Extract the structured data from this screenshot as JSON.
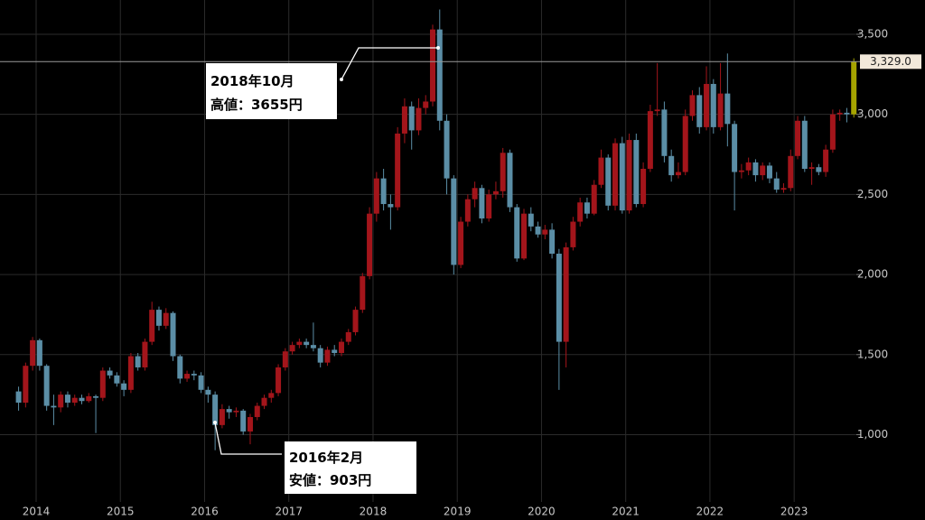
{
  "chart_data": {
    "type": "candlestick",
    "categories": [
      null,
      null,
      null,
      "2014",
      null,
      null,
      null,
      null,
      null,
      null,
      null,
      null,
      null,
      null,
      null,
      "2015",
      null,
      null,
      null,
      null,
      null,
      null,
      null,
      null,
      null,
      null,
      null,
      "2016",
      null,
      null,
      null,
      null,
      null,
      null,
      null,
      null,
      null,
      null,
      null,
      "2017",
      null,
      null,
      null,
      null,
      null,
      null,
      null,
      null,
      null,
      null,
      null,
      "2018",
      null,
      null,
      null,
      null,
      null,
      null,
      null,
      null,
      null,
      null,
      null,
      "2019",
      null,
      null,
      null,
      null,
      null,
      null,
      null,
      null,
      null,
      null,
      null,
      "2020",
      null,
      null,
      null,
      null,
      null,
      null,
      null,
      null,
      null,
      null,
      null,
      "2021",
      null,
      null,
      null,
      null,
      null,
      null,
      null,
      null,
      null,
      null,
      null,
      "2022",
      null,
      null,
      null,
      null,
      null,
      null,
      null,
      null,
      null,
      null,
      null,
      "2023",
      null,
      null,
      null,
      null,
      null,
      null,
      null,
      null
    ],
    "open": [
      1270,
      1200,
      1430,
      1590,
      1430,
      1180,
      1170,
      1250,
      1200,
      1230,
      1210,
      1240,
      1230,
      1400,
      1370,
      1320,
      1280,
      1490,
      1420,
      1580,
      1780,
      1680,
      1760,
      1490,
      1350,
      1380,
      1370,
      1280,
      1250,
      1060,
      1160,
      1140,
      1150,
      1020,
      1110,
      1180,
      1230,
      1260,
      1420,
      1520,
      1560,
      1580,
      1560,
      1540,
      1450,
      1530,
      1510,
      1580,
      1640,
      1780,
      1990,
      2380,
      2600,
      2440,
      2420,
      2880,
      3050,
      2900,
      3040,
      3080,
      3530,
      2960,
      2600,
      2060,
      2330,
      2470,
      2540,
      2350,
      2500,
      2520,
      2760,
      2420,
      2100,
      2380,
      2300,
      2250,
      2280,
      2130,
      1580,
      2170,
      2330,
      2450,
      2380,
      2560,
      2730,
      2430,
      2820,
      2400,
      2840,
      2440,
      2660,
      3020,
      3030,
      2740,
      2620,
      2640,
      2990,
      3120,
      2920,
      3190,
      2920,
      3130,
      2940,
      2640,
      2650,
      2700,
      2620,
      2680,
      2600,
      2530,
      2540,
      2740,
      2960,
      2660,
      2670,
      2640,
      2780,
      3000,
      3010,
      3000
    ],
    "high": [
      1300,
      1450,
      1610,
      1600,
      1440,
      1250,
      1270,
      1270,
      1250,
      1250,
      1260,
      1250,
      1420,
      1420,
      1390,
      1340,
      1510,
      1510,
      1600,
      1830,
      1800,
      1790,
      1770,
      1500,
      1400,
      1400,
      1390,
      1300,
      1270,
      1190,
      1180,
      1170,
      1160,
      1130,
      1200,
      1250,
      1280,
      1440,
      1540,
      1580,
      1600,
      1600,
      1700,
      1560,
      1550,
      1560,
      1600,
      1660,
      1800,
      2010,
      2420,
      2640,
      2660,
      2500,
      2920,
      3100,
      3080,
      3100,
      3120,
      3560,
      3655,
      3000,
      2620,
      2360,
      2500,
      2580,
      2560,
      2530,
      2580,
      2790,
      2780,
      2440,
      2410,
      2420,
      2330,
      2310,
      2320,
      2160,
      2200,
      2360,
      2480,
      2480,
      2590,
      2780,
      2750,
      2850,
      2860,
      2880,
      2880,
      2700,
      3060,
      3320,
      3080,
      2780,
      2700,
      3030,
      3150,
      3170,
      3300,
      3220,
      3320,
      3380,
      2960,
      2690,
      2730,
      2720,
      2700,
      2700,
      2640,
      2570,
      2780,
      2990,
      2990,
      2700,
      2690,
      2810,
      3030,
      3030,
      3040,
      3350
    ],
    "low": [
      1150,
      1170,
      1400,
      1400,
      1150,
      1060,
      1140,
      1170,
      1180,
      1190,
      1200,
      1010,
      1210,
      1350,
      1300,
      1240,
      1260,
      1400,
      1400,
      1560,
      1650,
      1660,
      1460,
      1320,
      1330,
      1340,
      1260,
      1200,
      903,
      1040,
      1100,
      1110,
      1000,
      940,
      1090,
      1160,
      1200,
      1240,
      1400,
      1500,
      1540,
      1540,
      1520,
      1420,
      1430,
      1490,
      1490,
      1560,
      1620,
      1760,
      1970,
      2330,
      2400,
      2280,
      2400,
      2820,
      2780,
      2870,
      3000,
      3050,
      2900,
      2500,
      2000,
      2040,
      2300,
      2420,
      2320,
      2330,
      2470,
      2480,
      2390,
      2080,
      2090,
      2270,
      2230,
      2220,
      2100,
      1280,
      1420,
      2150,
      2300,
      2350,
      2370,
      2540,
      2400,
      2400,
      2380,
      2380,
      2420,
      2420,
      2640,
      2990,
      2700,
      2580,
      2600,
      2620,
      2960,
      2880,
      2900,
      2880,
      2900,
      2800,
      2400,
      2600,
      2620,
      2580,
      2590,
      2570,
      2510,
      2510,
      2520,
      2720,
      2640,
      2560,
      2620,
      2610,
      2760,
      2960,
      2950,
      2980
    ],
    "close": [
      1200,
      1430,
      1590,
      1430,
      1180,
      1170,
      1250,
      1200,
      1230,
      1210,
      1240,
      1230,
      1400,
      1370,
      1320,
      1280,
      1490,
      1420,
      1580,
      1780,
      1680,
      1760,
      1490,
      1350,
      1380,
      1370,
      1280,
      1250,
      1060,
      1160,
      1140,
      1150,
      1020,
      1110,
      1180,
      1230,
      1260,
      1420,
      1520,
      1560,
      1580,
      1560,
      1540,
      1450,
      1530,
      1510,
      1580,
      1640,
      1780,
      1990,
      2380,
      2600,
      2440,
      2420,
      2880,
      3050,
      2900,
      3040,
      3080,
      3530,
      2960,
      2600,
      2060,
      2330,
      2470,
      2540,
      2350,
      2500,
      2520,
      2760,
      2420,
      2100,
      2380,
      2300,
      2250,
      2280,
      2130,
      1580,
      2170,
      2330,
      2450,
      2380,
      2560,
      2730,
      2430,
      2820,
      2400,
      2840,
      2440,
      2660,
      3020,
      3030,
      2740,
      2620,
      2640,
      2990,
      3120,
      2920,
      3190,
      2920,
      3130,
      2940,
      2640,
      2650,
      2700,
      2620,
      2680,
      2600,
      2530,
      2540,
      2740,
      2960,
      2660,
      2670,
      2640,
      2780,
      3000,
      3010,
      3000,
      3329
    ],
    "up_color": "#a3151b",
    "down_color": "#5b8ea6",
    "last_color": "#a6a400",
    "ylim": [
      580,
      3714
    ],
    "yticks": [
      {
        "value": 1000,
        "label": "1,000"
      },
      {
        "value": 1500,
        "label": "1,500"
      },
      {
        "value": 2000,
        "label": "2,000"
      },
      {
        "value": 2500,
        "label": "2,500"
      },
      {
        "value": 3000,
        "label": "3,000"
      },
      {
        "value": 3500,
        "label": "3,500"
      }
    ],
    "grid": true,
    "price_line": {
      "value": 3329,
      "label": "3,329.0"
    },
    "annotations": [
      {
        "lines": [
          "2018年10月",
          "高値：3655円"
        ]
      },
      {
        "lines": [
          "2016年2月",
          "安値：903円"
        ]
      }
    ]
  }
}
